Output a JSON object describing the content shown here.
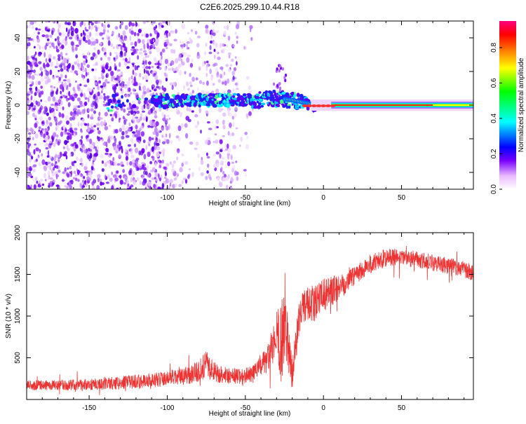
{
  "figure": {
    "title": "C2E6.2025.299.10.44.R18"
  },
  "chart_data": [
    {
      "type": "heatmap",
      "name": "spectrogram",
      "title": "C2E6.2025.299.10.44.R18",
      "xlabel": "Height of straight line (km)",
      "ylabel": "Frequency (Hz)",
      "xlim": [
        -190,
        96
      ],
      "ylim": [
        -50,
        50
      ],
      "xticks": [
        -150,
        -100,
        -50,
        0,
        50
      ],
      "yticks": [
        -40,
        -20,
        0,
        20,
        40
      ],
      "colorbar": {
        "label": "Normalized spectral amplitude",
        "range": [
          0,
          0.95
        ],
        "ticks": [
          0.0,
          0.2,
          0.4,
          0.6,
          0.8
        ],
        "colormap": [
          "#ffffff",
          "#e9b8ff",
          "#7a00ff",
          "#0000ff",
          "#00ffff",
          "#00ff00",
          "#ffff00",
          "#ff8000",
          "#ff0000",
          "#ff0080"
        ]
      },
      "description_series": [
        {
          "name": "noise_scatter",
          "x_range": [
            -190,
            -50
          ],
          "y_range": [
            -50,
            50
          ],
          "amplitude_approx": 0.1
        },
        {
          "name": "signal_trace",
          "points": [
            [
              -135,
              3
            ],
            [
              -110,
              2
            ],
            [
              -90,
              3
            ],
            [
              -70,
              3
            ],
            [
              -50,
              3
            ],
            [
              -40,
              3
            ],
            [
              -30,
              4
            ],
            [
              -20,
              3
            ],
            [
              -10,
              1
            ],
            [
              0,
              0
            ],
            [
              20,
              0
            ],
            [
              60,
              0
            ],
            [
              95,
              0
            ]
          ],
          "amplitude_approx": 0.8
        }
      ]
    },
    {
      "type": "line",
      "name": "snr",
      "xlabel": "Height of straight line (km)",
      "ylabel": "SNR (10 * v/v)",
      "xlim": [
        -190,
        96
      ],
      "ylim": [
        0,
        2000
      ],
      "xticks": [
        -150,
        -100,
        -50,
        0,
        50
      ],
      "yticks": [
        500,
        1000,
        1500,
        2000
      ],
      "line_color": "#ee3333",
      "series": [
        {
          "name": "SNR",
          "x": [
            -190,
            -170,
            -150,
            -130,
            -110,
            -100,
            -90,
            -80,
            -75,
            -70,
            -60,
            -50,
            -45,
            -40,
            -35,
            -30,
            -27,
            -24,
            -20,
            -15,
            -10,
            -5,
            0,
            10,
            20,
            30,
            40,
            50,
            60,
            70,
            80,
            90,
            96
          ],
          "mean": [
            170,
            170,
            180,
            200,
            230,
            250,
            270,
            340,
            420,
            330,
            280,
            280,
            320,
            400,
            500,
            800,
            700,
            900,
            300,
            1050,
            1150,
            1150,
            1250,
            1350,
            1500,
            1620,
            1700,
            1700,
            1680,
            1640,
            1600,
            1560,
            1520
          ],
          "spread": [
            60,
            60,
            70,
            80,
            90,
            90,
            100,
            130,
            160,
            120,
            100,
            100,
            100,
            130,
            180,
            300,
            500,
            400,
            200,
            200,
            220,
            220,
            200,
            160,
            130,
            120,
            110,
            110,
            100,
            100,
            100,
            100,
            100
          ]
        }
      ]
    }
  ]
}
